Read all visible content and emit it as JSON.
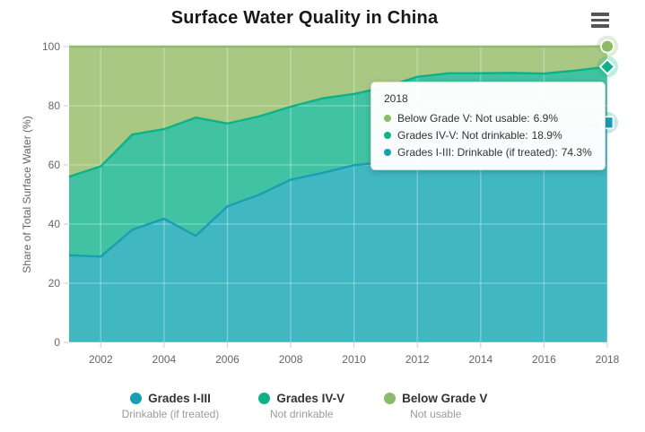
{
  "header": {
    "title": "Surface Water Quality in China"
  },
  "menu": {
    "icon": "hamburger-menu-icon"
  },
  "chart_data": {
    "type": "area",
    "stacked": true,
    "title": "Surface Water Quality in China",
    "xlabel": "",
    "ylabel": "Share of Total Surface Water (%)",
    "ylim": [
      0,
      100
    ],
    "ytick_interval": 20,
    "ytick_labels": [
      "0",
      "20",
      "40",
      "60",
      "80",
      "100"
    ],
    "xtick_labels": [
      "2002",
      "2004",
      "2006",
      "2008",
      "2010",
      "2012",
      "2014",
      "2016",
      "2018"
    ],
    "grid": true,
    "legend_position": "bottom",
    "x": [
      2001,
      2002,
      2003,
      2004,
      2005,
      2006,
      2007,
      2008,
      2009,
      2010,
      2011,
      2012,
      2013,
      2014,
      2015,
      2016,
      2017,
      2018
    ],
    "series": [
      {
        "name": "Grades I-III",
        "sublabel": "Drinkable (if treated)",
        "marker": "square",
        "line_color": "#189fb1",
        "fill_color": "#41b7c1",
        "values": [
          29.5,
          29.0,
          38.1,
          41.8,
          36.0,
          46.0,
          49.9,
          55.0,
          57.3,
          59.9,
          61.0,
          68.9,
          71.7,
          71.2,
          72.1,
          71.2,
          71.8,
          74.3
        ]
      },
      {
        "name": "Grades IV-V",
        "sublabel": "Not drinkable",
        "marker": "diamond",
        "line_color": "#0fb287",
        "fill_color": "#40c2a3",
        "values": [
          26.5,
          30.5,
          32.2,
          30.3,
          40.0,
          28.0,
          26.5,
          24.7,
          25.2,
          24.1,
          25.3,
          20.9,
          19.3,
          19.8,
          19.0,
          19.7,
          20.1,
          18.9
        ]
      },
      {
        "name": "Below Grade V",
        "sublabel": "Not usable",
        "marker": "circle",
        "line_color": "#8cbc68",
        "fill_color": "#a9c884",
        "values": [
          44.0,
          40.5,
          29.7,
          27.9,
          24.0,
          26.0,
          23.6,
          20.3,
          17.5,
          16.0,
          13.7,
          10.2,
          9.0,
          9.0,
          8.9,
          9.1,
          8.1,
          6.9
        ]
      }
    ]
  },
  "tooltip": {
    "title": "2018",
    "rows": [
      {
        "label": "Below Grade V: Not usable:",
        "value": "6.9%",
        "color": "#8cbc68"
      },
      {
        "label": "Grades IV-V: Not drinkable:",
        "value": "18.9%",
        "color": "#0fb287"
      },
      {
        "label": "Grades I-III: Drinkable (if treated):",
        "value": "74.3%",
        "color": "#189fb1"
      }
    ]
  }
}
